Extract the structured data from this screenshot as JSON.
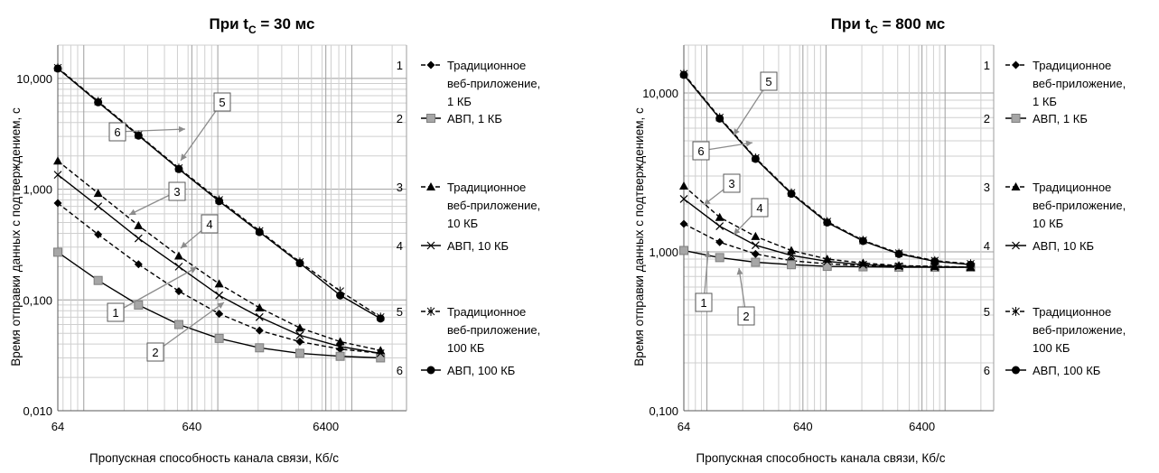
{
  "chart_data": [
    {
      "type": "line",
      "title": {
        "main": "При t",
        "sub": "С",
        "tail": " = 30 мс"
      },
      "xlabel": "Пропускная способность канала связи, Кб/с",
      "ylabel": "Время отправки данных с подтверждением, с",
      "xscale": "log2",
      "yscale": "log10",
      "xlim": [
        64,
        25600
      ],
      "ylim": [
        0.01,
        20
      ],
      "xticks": [
        64,
        640,
        6400
      ],
      "xtick_labels": [
        "64",
        "640",
        "6400"
      ],
      "yticks": [
        0.01,
        0.1,
        1,
        10
      ],
      "ytick_labels": [
        "0,010",
        "0,100",
        "1,000",
        "10,000"
      ],
      "grid": true,
      "legend_position": "right",
      "x": [
        64,
        128,
        256,
        512,
        1024,
        2048,
        4096,
        8192,
        16384
      ],
      "series": [
        {
          "id": "1",
          "name": "Традиционное веб-приложение, 1 КБ",
          "name_lines": [
            "Традиционное",
            "веб-приложение,",
            "1 КБ"
          ],
          "line": "dashed",
          "marker": "diamond",
          "values": [
            0.75,
            0.39,
            0.21,
            0.12,
            0.075,
            0.053,
            0.042,
            0.036,
            0.033
          ]
        },
        {
          "id": "2",
          "name": "АВП, 1 КБ",
          "name_lines": [
            "АВП, 1 КБ"
          ],
          "line": "solid",
          "marker": "square",
          "values": [
            0.27,
            0.15,
            0.09,
            0.06,
            0.045,
            0.037,
            0.033,
            0.031,
            0.03
          ]
        },
        {
          "id": "3",
          "name": "Традиционное веб-приложение, 10 КБ",
          "name_lines": [
            "Традиционное",
            "веб-приложение,",
            "10 КБ"
          ],
          "line": "dashed",
          "marker": "triangle",
          "values": [
            1.8,
            0.92,
            0.47,
            0.25,
            0.14,
            0.085,
            0.056,
            0.042,
            0.035
          ]
        },
        {
          "id": "4",
          "name": "АВП, 10 КБ",
          "name_lines": [
            "АВП, 10 КБ"
          ],
          "line": "solid",
          "marker": "x",
          "values": [
            1.35,
            0.7,
            0.36,
            0.2,
            0.11,
            0.07,
            0.048,
            0.038,
            0.033
          ]
        },
        {
          "id": "5",
          "name": "Традиционное веб-приложение, 100 КБ",
          "name_lines": [
            "Традиционное",
            "веб-приложение,",
            "100 КБ"
          ],
          "line": "dashed",
          "marker": "asterisk",
          "values": [
            12.5,
            6.2,
            3.1,
            1.55,
            0.8,
            0.42,
            0.22,
            0.12,
            0.07
          ]
        },
        {
          "id": "6",
          "name": "АВП, 100 КБ",
          "name_lines": [
            "АВП, 100 КБ"
          ],
          "line": "solid",
          "marker": "circle",
          "values": [
            12.3,
            6.1,
            3.05,
            1.52,
            0.78,
            0.41,
            0.215,
            0.11,
            0.068
          ]
        }
      ],
      "callouts": [
        "1",
        "2",
        "3",
        "4",
        "5",
        "6"
      ]
    },
    {
      "type": "line",
      "title": {
        "main": "При t",
        "sub": "С",
        "tail": " = 800 мс"
      },
      "xlabel": "Пропускная способность канала связи, Кб/с",
      "ylabel": "Время отправки данных с подтверждением, с",
      "xscale": "log2",
      "yscale": "log10",
      "xlim": [
        64,
        25600
      ],
      "ylim": [
        0.1,
        20
      ],
      "xticks": [
        64,
        640,
        6400
      ],
      "xtick_labels": [
        "64",
        "640",
        "6400"
      ],
      "yticks": [
        0.1,
        1,
        10
      ],
      "ytick_labels": [
        "0,100",
        "1,000",
        "10,000"
      ],
      "grid": true,
      "legend_position": "right",
      "x": [
        64,
        128,
        256,
        512,
        1024,
        2048,
        4096,
        8192,
        16384
      ],
      "series": [
        {
          "id": "1",
          "name": "Традиционное веб-приложение, 1 КБ",
          "name_lines": [
            "Традиционное",
            "веб-приложение,",
            "1 КБ"
          ],
          "line": "dashed",
          "marker": "diamond",
          "values": [
            1.5,
            1.15,
            0.97,
            0.88,
            0.84,
            0.82,
            0.81,
            0.81,
            0.8
          ]
        },
        {
          "id": "2",
          "name": "АВП, 1 КБ",
          "name_lines": [
            "АВП, 1 КБ"
          ],
          "line": "solid",
          "marker": "square",
          "values": [
            1.02,
            0.92,
            0.86,
            0.83,
            0.81,
            0.805,
            0.8,
            0.8,
            0.8
          ]
        },
        {
          "id": "3",
          "name": "Традиционное веб-приложение, 10 КБ",
          "name_lines": [
            "Традиционное",
            "веб-приложение,",
            "10 КБ"
          ],
          "line": "dashed",
          "marker": "triangle",
          "values": [
            2.6,
            1.65,
            1.25,
            1.02,
            0.9,
            0.85,
            0.82,
            0.81,
            0.8
          ]
        },
        {
          "id": "4",
          "name": "АВП, 10 КБ",
          "name_lines": [
            "АВП, 10 КБ"
          ],
          "line": "solid",
          "marker": "x",
          "values": [
            2.15,
            1.45,
            1.1,
            0.95,
            0.87,
            0.83,
            0.81,
            0.8,
            0.8
          ]
        },
        {
          "id": "5",
          "name": "Традиционное веб-приложение, 100 КБ",
          "name_lines": [
            "Традиционное",
            "веб-приложение,",
            "100 КБ"
          ],
          "line": "dashed",
          "marker": "asterisk",
          "values": [
            13.2,
            7.0,
            3.9,
            2.35,
            1.55,
            1.18,
            0.98,
            0.88,
            0.84
          ]
        },
        {
          "id": "6",
          "name": "АВП, 100 КБ",
          "name_lines": [
            "АВП, 100 КБ"
          ],
          "line": "solid",
          "marker": "circle",
          "values": [
            13.0,
            6.9,
            3.85,
            2.32,
            1.53,
            1.17,
            0.97,
            0.87,
            0.83
          ]
        }
      ],
      "callouts": [
        "1",
        "2",
        "3",
        "4",
        "5",
        "6"
      ]
    }
  ]
}
